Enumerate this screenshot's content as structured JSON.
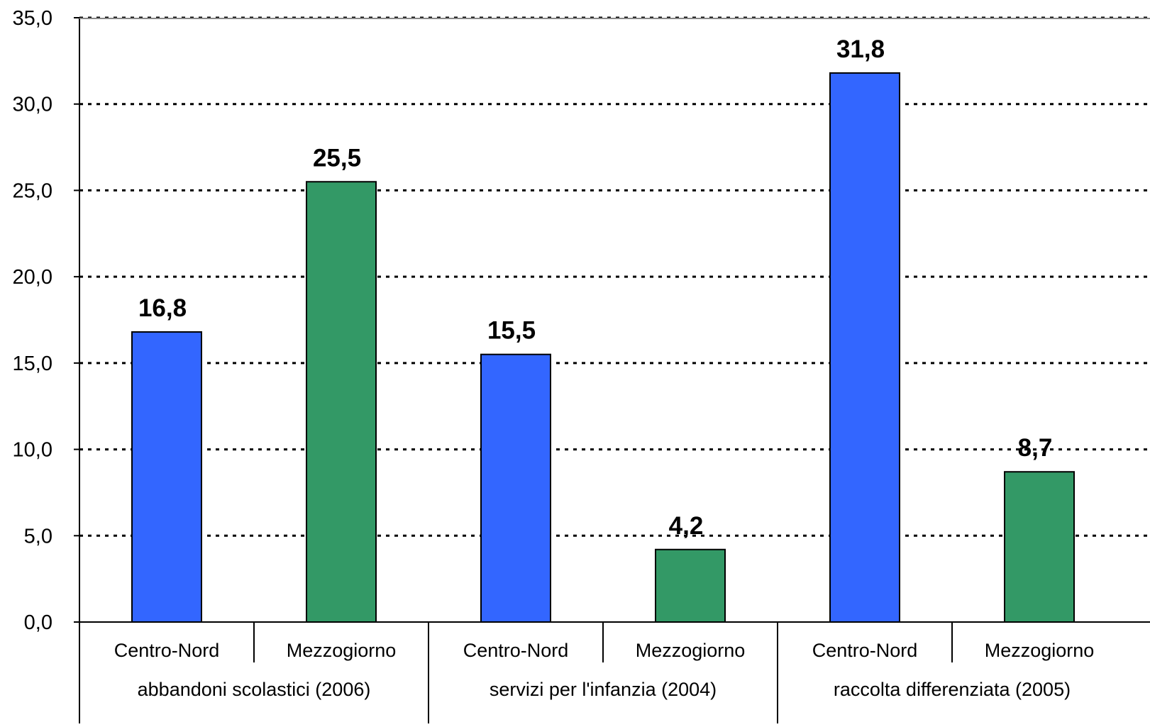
{
  "chart_data": {
    "type": "bar",
    "title": "",
    "xlabel": "",
    "ylabel": "",
    "ylim": [
      0,
      35
    ],
    "y_ticks": [
      0,
      5,
      10,
      15,
      20,
      25,
      30,
      35
    ],
    "y_tick_labels": [
      "0,0",
      "5,0",
      "10,0",
      "15,0",
      "20,0",
      "25,0",
      "30,0",
      "35,0"
    ],
    "grid": "horizontal dotted",
    "legend": "none",
    "groups": [
      {
        "label": "abbandoni scolastici (2006)",
        "bars": [
          {
            "category": "Centro-Nord",
            "value": 16.8,
            "label": "16,8",
            "color": "#3366FF"
          },
          {
            "category": "Mezzogiorno",
            "value": 25.5,
            "label": "25,5",
            "color": "#339966"
          }
        ]
      },
      {
        "label": "servizi per l'infanzia (2004)",
        "bars": [
          {
            "category": "Centro-Nord",
            "value": 15.5,
            "label": "15,5",
            "color": "#3366FF"
          },
          {
            "category": "Mezzogiorno",
            "value": 4.2,
            "label": "4,2",
            "color": "#339966"
          }
        ]
      },
      {
        "label": "raccolta differenziata (2005)",
        "bars": [
          {
            "category": "Centro-Nord",
            "value": 31.8,
            "label": "31,8",
            "color": "#3366FF"
          },
          {
            "category": "Mezzogiorno",
            "value": 8.7,
            "label": "8,7",
            "color": "#339966"
          }
        ]
      }
    ]
  },
  "colors": {
    "centro_nord": "#3366FF",
    "mezzogiorno": "#339966",
    "axis": "#000000",
    "grid": "#000000"
  }
}
